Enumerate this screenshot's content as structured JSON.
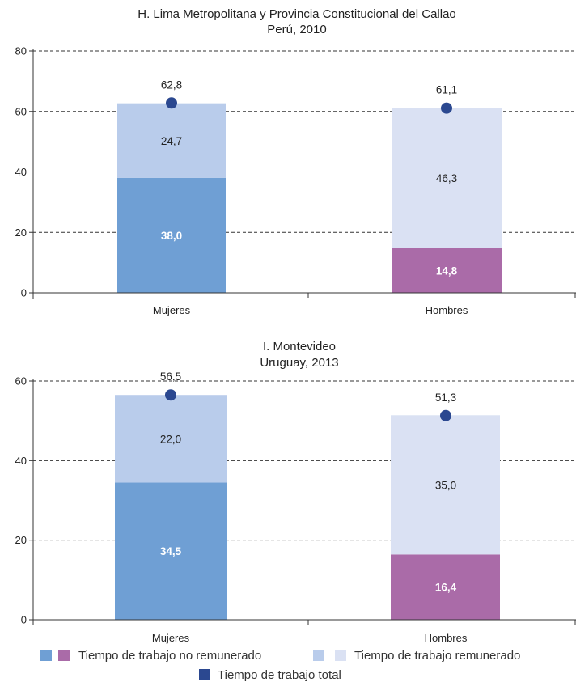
{
  "chart_data": [
    {
      "type": "bar",
      "title": "H. Lima Metropolitana y Provincia Constitucional del Callao",
      "subtitle": "Perú, 2010",
      "categories": [
        "Mujeres",
        "Hombres"
      ],
      "series": [
        {
          "name": "Tiempo de trabajo no remunerado",
          "values": [
            38.0,
            14.8
          ],
          "labels": [
            "38,0",
            "14,8"
          ]
        },
        {
          "name": "Tiempo de trabajo remunerado",
          "values": [
            24.7,
            46.3
          ],
          "labels": [
            "24,7",
            "46,3"
          ]
        },
        {
          "name": "Tiempo de trabajo total",
          "values": [
            62.8,
            61.1
          ],
          "labels": [
            "62,8",
            "61,1"
          ]
        }
      ],
      "ylim": [
        0,
        80
      ],
      "yticks": [
        0,
        20,
        40,
        60,
        80
      ],
      "grid": true
    },
    {
      "type": "bar",
      "title": "I. Montevideo",
      "subtitle": "Uruguay, 2013",
      "categories": [
        "Mujeres",
        "Hombres"
      ],
      "series": [
        {
          "name": "Tiempo de trabajo no remunerado",
          "values": [
            34.5,
            16.4
          ],
          "labels": [
            "34,5",
            "16,4"
          ]
        },
        {
          "name": "Tiempo de trabajo remunerado",
          "values": [
            22.0,
            35.0
          ],
          "labels": [
            "22,0",
            "35,0"
          ]
        },
        {
          "name": "Tiempo de trabajo total",
          "values": [
            56.5,
            51.3
          ],
          "labels": [
            "56,5",
            "51,3"
          ]
        }
      ],
      "ylim": [
        0,
        60
      ],
      "yticks": [
        0,
        20,
        40,
        60
      ],
      "grid": true
    }
  ],
  "legend": {
    "unpaid": "Tiempo de trabajo no remunerado",
    "paid": "Tiempo de trabajo remunerado",
    "total": "Tiempo de trabajo total"
  },
  "colors": {
    "unpaid_women": "#6f9fd4",
    "unpaid_men": "#aa6ba8",
    "paid_women": "#b9cceb",
    "paid_men": "#dae1f3",
    "total_dot": "#2b4890"
  }
}
